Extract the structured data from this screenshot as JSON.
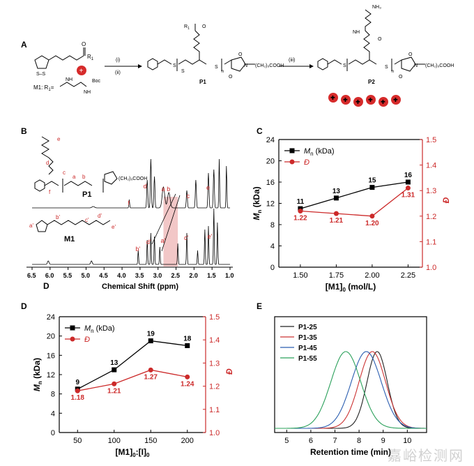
{
  "panels": {
    "A": "A",
    "B": "B",
    "C": "C",
    "D_top": "D",
    "D": "D",
    "E": "E"
  },
  "scheme": {
    "r1_label": "R",
    "r1_sub": "1",
    "step1": "(i)",
    "step2": "(ii)",
    "step3": "(iii)",
    "m1_text": "M1: R",
    "m1_sub": "1",
    "m1_eq": "=",
    "boc": "Boc",
    "nh": "NH",
    "n_sub": "n",
    "cooh_chain": "(CH₂)₅COOH",
    "p1": "P1",
    "p2": "P2",
    "nh3": "NH₃",
    "ss": "S–S",
    "s": "S",
    "o": "O",
    "n_atom": "N"
  },
  "nmr": {
    "p1_label": "P1",
    "m1_label": "M1",
    "xlabel": "Chemical Shift (ppm)",
    "xticks": [
      "6.5",
      "6.0",
      "5.5",
      "5.0",
      "4.5",
      "4.0",
      "3.5",
      "3.0",
      "2.5",
      "2.0",
      "1.5",
      "1.0"
    ],
    "p1_peak_labels": [
      "f",
      "d",
      "a",
      "b",
      "c",
      "e"
    ],
    "m1_peak_labels": [
      "b'",
      "d'",
      "a'",
      "c'",
      "e'"
    ],
    "struct_labels_p1": [
      "e",
      "d",
      "c",
      "a",
      "b",
      "f"
    ],
    "struct_labels_m1": [
      "a'",
      "b'",
      "c'",
      "d'",
      "e'"
    ],
    "highlight_color": "#f2c7c7"
  },
  "chart_data": [
    {
      "id": "C",
      "type": "line",
      "xlabel": "[M1]",
      "xlabel_sub": "0",
      "xlabel_unit": " (mol/L)",
      "ylabel_left": "M",
      "ylabel_left_sub": "n",
      "ylabel_left_unit": " (kDa)",
      "ylabel_right": "Đ",
      "x": [
        1.5,
        1.75,
        2.0,
        2.25
      ],
      "xticks": [
        "1.50",
        "1.75",
        "2.00",
        "2.25"
      ],
      "xlim": [
        1.35,
        2.35
      ],
      "ylim_left": [
        0,
        24
      ],
      "ylim_right": [
        1.0,
        1.5
      ],
      "yticks_left": [
        "0",
        "4",
        "8",
        "12",
        "16",
        "20",
        "24"
      ],
      "yticks_right": [
        "1.0",
        "1.1",
        "1.2",
        "1.3",
        "1.4",
        "1.5"
      ],
      "series": [
        {
          "name": "M",
          "name_sub": "n",
          "name_unit": " (kDa)",
          "axis": "left",
          "color": "#000000",
          "marker": "square",
          "values": [
            11,
            13,
            15,
            16
          ],
          "labels": [
            "11",
            "13",
            "15",
            "16"
          ]
        },
        {
          "name": "Đ",
          "axis": "right",
          "color": "#cc2a2a",
          "marker": "circle",
          "values": [
            1.22,
            1.21,
            1.2,
            1.31
          ],
          "labels": [
            "1.22",
            "1.21",
            "1.20",
            "1.31"
          ]
        }
      ],
      "legend": "top-left"
    },
    {
      "id": "D",
      "type": "line",
      "xlabel": "[M1]",
      "xlabel_sub": "0",
      "xlabel_mid": ":[I]",
      "xlabel_sub2": "0",
      "ylabel_left": "M",
      "ylabel_left_sub": "n",
      "ylabel_left_unit": " (kDa)",
      "ylabel_right": "Đ",
      "x": [
        50,
        100,
        150,
        200
      ],
      "xticks": [
        "50",
        "100",
        "150",
        "200"
      ],
      "xlim": [
        25,
        225
      ],
      "ylim_left": [
        0,
        24
      ],
      "ylim_right": [
        1.0,
        1.5
      ],
      "yticks_left": [
        "0",
        "4",
        "8",
        "12",
        "16",
        "20",
        "24"
      ],
      "yticks_right": [
        "1.0",
        "1.1",
        "1.2",
        "1.3",
        "1.4",
        "1.5"
      ],
      "series": [
        {
          "name": "M",
          "name_sub": "n",
          "name_unit": " (kDa)",
          "axis": "left",
          "color": "#000000",
          "marker": "square",
          "values": [
            9,
            13,
            19,
            18
          ],
          "labels": [
            "9",
            "13",
            "19",
            "18"
          ]
        },
        {
          "name": "Đ",
          "axis": "right",
          "color": "#cc2a2a",
          "marker": "circle",
          "values": [
            1.18,
            1.21,
            1.27,
            1.24
          ],
          "labels": [
            "1.18",
            "1.21",
            "1.27",
            "1.24"
          ]
        }
      ],
      "legend": "top-left"
    },
    {
      "id": "E",
      "type": "line",
      "xlabel": "Retention time (min)",
      "xticks": [
        "5",
        "6",
        "7",
        "8",
        "9",
        "10"
      ],
      "xlim": [
        4.5,
        10.8
      ],
      "series": [
        {
          "name": "P1-25",
          "color": "#222222",
          "peak": 8.75,
          "sigma": 0.42
        },
        {
          "name": "P1-35",
          "color": "#cc3333",
          "peak": 8.55,
          "sigma": 0.55
        },
        {
          "name": "P1-45",
          "color": "#2a5db0",
          "peak": 8.3,
          "sigma": 0.62
        },
        {
          "name": "P1-55",
          "color": "#2aa05a",
          "peak": 7.45,
          "sigma": 0.62
        }
      ],
      "legend": "top-left"
    }
  ],
  "watermark": "嘉峪检测网"
}
